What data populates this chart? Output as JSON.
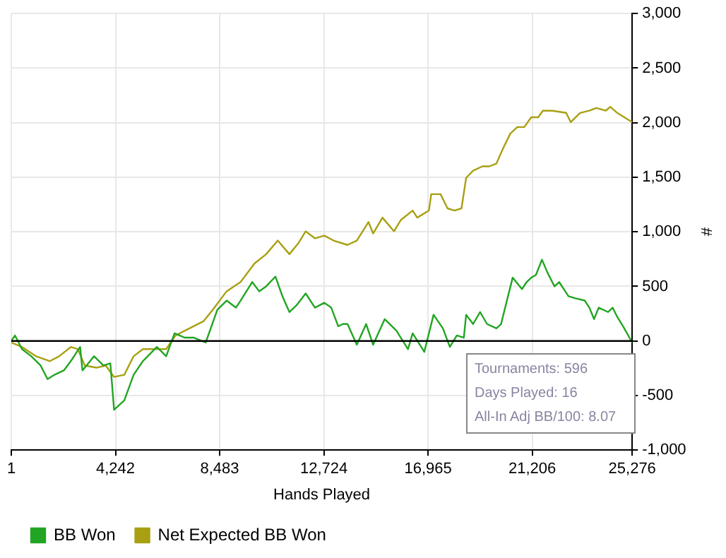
{
  "chart_data": {
    "type": "line",
    "xlabel": "Hands Played",
    "ylabel": "#",
    "xlim": [
      1,
      25276
    ],
    "xticks": [
      {
        "value": 1,
        "label": "1"
      },
      {
        "value": 4242,
        "label": "4,242"
      },
      {
        "value": 8483,
        "label": "8,483"
      },
      {
        "value": 12724,
        "label": "12,724"
      },
      {
        "value": 16965,
        "label": "16,965"
      },
      {
        "value": 21206,
        "label": "21,206"
      },
      {
        "value": 25276,
        "label": "25,276"
      }
    ],
    "ylim": [
      -1000,
      3000
    ],
    "yticks": [
      {
        "value": -1000,
        "label": "-1,000"
      },
      {
        "value": -500,
        "label": "-500"
      },
      {
        "value": 0,
        "label": "0"
      },
      {
        "value": 500,
        "label": "500"
      },
      {
        "value": 1000,
        "label": "1,000"
      },
      {
        "value": 1500,
        "label": "1,500"
      },
      {
        "value": 2000,
        "label": "2,000"
      },
      {
        "value": 2500,
        "label": "2,500"
      },
      {
        "value": 3000,
        "label": "3,000"
      }
    ],
    "grid": true,
    "legend": "bottom left",
    "marker": "none",
    "line_style": "solid",
    "ref_lines": [
      {
        "axis": "y",
        "value": 0,
        "color": "#000000"
      }
    ],
    "annotations": [
      "Tournaments: 596",
      "Days Played: 16",
      "All-In Adj BB/100: 8.07"
    ],
    "series": [
      {
        "name": "BB Won",
        "color": "#22a522",
        "x": [
          1,
          152,
          436,
          815,
          1193,
          1477,
          1761,
          2140,
          2424,
          2803,
          2897,
          3371,
          3749,
          4033,
          4185,
          4601,
          4980,
          5358,
          5926,
          6305,
          6645,
          7062,
          7440,
          7914,
          8387,
          8766,
          9144,
          9334,
          9807,
          10091,
          10375,
          10754,
          11037,
          11321,
          11605,
          11984,
          12362,
          12741,
          13025,
          13309,
          13498,
          13687,
          14066,
          14445,
          14729,
          15202,
          15676,
          16149,
          16338,
          16812,
          17190,
          17569,
          17853,
          18137,
          18421,
          18516,
          18800,
          19084,
          19368,
          19746,
          19936,
          20409,
          20788,
          20977,
          21166,
          21356,
          21602,
          21829,
          22113,
          22302,
          22681,
          22965,
          23343,
          23532,
          23722,
          23911,
          24290,
          24479,
          24668,
          24952,
          25276
        ],
        "values": [
          0,
          50,
          -75,
          -140,
          -225,
          -350,
          -310,
          -270,
          -185,
          -55,
          -270,
          -140,
          -225,
          -205,
          -630,
          -545,
          -310,
          -185,
          -55,
          -140,
          70,
          30,
          30,
          -15,
          285,
          370,
          305,
          370,
          540,
          455,
          500,
          590,
          410,
          265,
          325,
          435,
          305,
          350,
          305,
          135,
          155,
          155,
          -35,
          155,
          -35,
          200,
          95,
          -75,
          70,
          -100,
          240,
          115,
          -55,
          50,
          30,
          240,
          155,
          265,
          155,
          115,
          155,
          580,
          475,
          540,
          580,
          605,
          745,
          625,
          500,
          540,
          410,
          390,
          370,
          305,
          200,
          305,
          265,
          305,
          220,
          115,
          -15
        ]
      },
      {
        "name": "Net Expected BB Won",
        "color": "#a8a012",
        "x": [
          1,
          436,
          1004,
          1572,
          1950,
          2424,
          2708,
          2992,
          3465,
          3844,
          4185,
          4601,
          4980,
          5358,
          5737,
          6305,
          6684,
          7252,
          7820,
          8198,
          8766,
          9334,
          9902,
          10375,
          10848,
          11321,
          11700,
          11984,
          12362,
          12741,
          13119,
          13687,
          14066,
          14539,
          14729,
          15108,
          15581,
          15865,
          16338,
          16527,
          17000,
          17095,
          17474,
          17758,
          18042,
          18326,
          18516,
          18800,
          19179,
          19463,
          19746,
          20030,
          20314,
          20598,
          20882,
          21166,
          21450,
          21640,
          22018,
          22586,
          22775,
          23154,
          23532,
          23816,
          24195,
          24384,
          24668,
          24952,
          25276
        ],
        "values": [
          -15,
          -55,
          -140,
          -185,
          -140,
          -55,
          -75,
          -225,
          -245,
          -225,
          -330,
          -310,
          -140,
          -75,
          -75,
          -75,
          50,
          115,
          180,
          285,
          455,
          540,
          710,
          795,
          920,
          795,
          900,
          1005,
          940,
          965,
          920,
          880,
          920,
          1090,
          985,
          1130,
          1005,
          1110,
          1195,
          1130,
          1195,
          1345,
          1345,
          1215,
          1195,
          1215,
          1495,
          1560,
          1600,
          1600,
          1625,
          1770,
          1900,
          1960,
          1960,
          2050,
          2050,
          2110,
          2110,
          2090,
          2005,
          2090,
          2110,
          2135,
          2110,
          2145,
          2090,
          2050,
          2005
        ]
      }
    ]
  }
}
